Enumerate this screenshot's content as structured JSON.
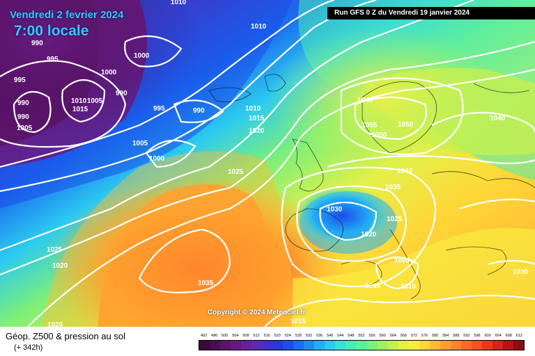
{
  "header": {
    "date": "Vendredi 2 fevrier 2024",
    "time": "7:00 locale",
    "run": "Run GFS 0 Z du Vendredi 19 janvier 2024"
  },
  "copyright": "Copyright © 2024 Meteociel.fr",
  "footer": {
    "title": "Géop. Z500 & pression au sol",
    "subtitle": "(+ 342h)"
  },
  "legend": {
    "ticks": [
      "492",
      "496",
      "500",
      "504",
      "508",
      "512",
      "516",
      "520",
      "524",
      "528",
      "532",
      "536",
      "540",
      "544",
      "548",
      "552",
      "556",
      "560",
      "564",
      "568",
      "572",
      "576",
      "580",
      "584",
      "588",
      "592",
      "596",
      "600",
      "604",
      "608",
      "612"
    ],
    "colors": [
      "#3a0a3a",
      "#4a0e4f",
      "#5a1468",
      "#661a80",
      "#6a1f9a",
      "#5a2bb0",
      "#4030c8",
      "#2a38d8",
      "#1a4ee8",
      "#1a6cf0",
      "#1e8cf4",
      "#22aef6",
      "#2ccaf0",
      "#3ae0d8",
      "#48ecb8",
      "#5cf098",
      "#7cf078",
      "#a0f060",
      "#c4f050",
      "#e4f048",
      "#f8ec40",
      "#ffd838",
      "#ffbc34",
      "#ffa030",
      "#ff842c",
      "#ff6828",
      "#f85024",
      "#e83820",
      "#d0241c",
      "#b41418",
      "#900c10"
    ]
  },
  "pressure_labels": [
    "1010",
    "1010",
    "990",
    "995",
    "1000",
    "1000",
    "995",
    "990",
    "990",
    "1010",
    "1005",
    "1015",
    "990",
    "1005",
    "995",
    "990",
    "1005",
    "1000",
    "1010",
    "1015",
    "1020",
    "1025",
    "1045",
    "1055",
    "1050",
    "1050",
    "1040",
    "1040",
    "1035",
    "1030",
    "1025",
    "1020",
    "1005",
    "1015",
    "1010",
    "1030",
    "1025",
    "1020",
    "1035",
    "1020",
    "1015"
  ]
}
